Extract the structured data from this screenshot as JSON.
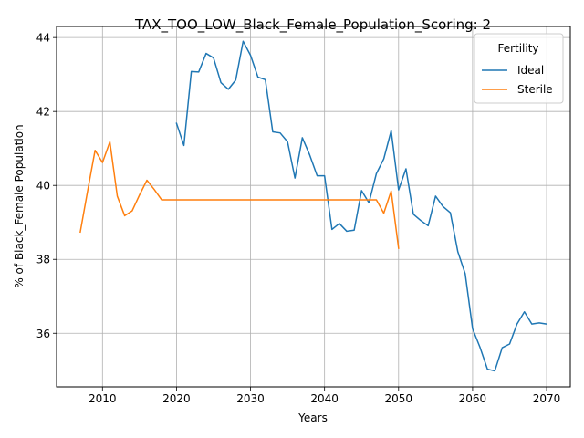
{
  "chart_data": {
    "type": "line",
    "title": "TAX_TOO_LOW_Black_Female_Population_Scoring: 2",
    "xlabel": "Years",
    "ylabel": "% of Black_Female Population",
    "xlim": [
      2003.8,
      2073.2
    ],
    "ylim": [
      34.55,
      44.3
    ],
    "xticks": [
      2010,
      2020,
      2030,
      2040,
      2050,
      2060,
      2070
    ],
    "yticks": [
      36,
      38,
      40,
      42,
      44
    ],
    "grid": true,
    "legend": {
      "title": "Fertility",
      "position": "top-right"
    },
    "series": [
      {
        "name": "Ideal",
        "color": "#1f77b4",
        "x": [
          2020,
          2021,
          2022,
          2023,
          2024,
          2025,
          2026,
          2027,
          2028,
          2029,
          2030,
          2031,
          2032,
          2033,
          2034,
          2035,
          2036,
          2037,
          2038,
          2039,
          2040,
          2041,
          2042,
          2043,
          2044,
          2045,
          2046,
          2047,
          2048,
          2049,
          2050,
          2051,
          2052,
          2053,
          2054,
          2055,
          2056,
          2057,
          2058,
          2059,
          2060,
          2061,
          2062,
          2063,
          2064,
          2065,
          2066,
          2067,
          2068,
          2069,
          2070
        ],
        "y": [
          41.68,
          41.08,
          43.08,
          43.07,
          43.57,
          43.45,
          42.78,
          42.6,
          42.85,
          43.9,
          43.52,
          42.93,
          42.86,
          41.45,
          41.42,
          41.18,
          40.2,
          41.29,
          40.82,
          40.26,
          40.26,
          38.81,
          38.97,
          38.76,
          38.79,
          39.86,
          39.53,
          40.32,
          40.72,
          41.48,
          39.88,
          40.45,
          39.22,
          39.05,
          38.91,
          39.71,
          39.43,
          39.26,
          38.21,
          37.61,
          36.12,
          35.62,
          35.03,
          34.98,
          35.61,
          35.71,
          36.25,
          36.58,
          36.25,
          36.28,
          36.25
        ]
      },
      {
        "name": "Sterile",
        "color": "#ff7f0e",
        "x": [
          2007,
          2008,
          2009,
          2010,
          2011,
          2012,
          2013,
          2014,
          2015,
          2016,
          2017,
          2018,
          2019,
          2020,
          2021,
          2022,
          2023,
          2024,
          2025,
          2026,
          2027,
          2028,
          2029,
          2030,
          2031,
          2032,
          2033,
          2034,
          2035,
          2036,
          2037,
          2038,
          2039,
          2040,
          2041,
          2042,
          2043,
          2044,
          2045,
          2046,
          2047,
          2048,
          2049,
          2050
        ],
        "y": [
          38.74,
          39.86,
          40.95,
          40.62,
          41.18,
          39.71,
          39.18,
          39.31,
          39.74,
          40.14,
          39.89,
          39.61,
          39.61,
          39.61,
          39.61,
          39.61,
          39.61,
          39.61,
          39.61,
          39.61,
          39.61,
          39.61,
          39.61,
          39.61,
          39.61,
          39.61,
          39.61,
          39.61,
          39.61,
          39.61,
          39.61,
          39.61,
          39.61,
          39.61,
          39.61,
          39.61,
          39.61,
          39.61,
          39.61,
          39.61,
          39.61,
          39.25,
          39.85,
          38.3
        ]
      }
    ]
  }
}
